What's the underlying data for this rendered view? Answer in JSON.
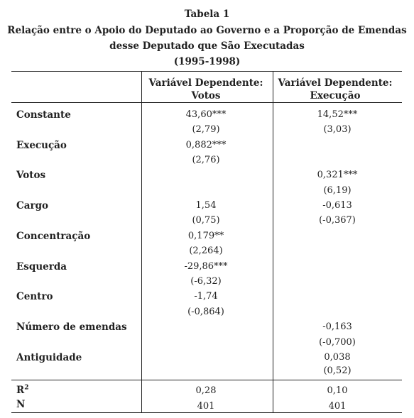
{
  "header": {
    "table_no": "Tabela 1",
    "title_line1": "Relação entre o Apoio do Deputado ao Governo e a Proporção de Emendas",
    "title_line2": "desse Deputado que São Executadas",
    "period": "(1995-1998)"
  },
  "columns": [
    {
      "line1": "Variável Dependente:",
      "line2": "Votos"
    },
    {
      "line1": "Variável Dependente:",
      "line2": "Execução"
    }
  ],
  "rows": [
    {
      "label": "Constante",
      "c1": "43,60***",
      "c1se": "(2,79)",
      "c2": "14,52***",
      "c2se": "(3,03)"
    },
    {
      "label": "Execução",
      "c1": "0,882***",
      "c1se": "(2,76)",
      "c2": "",
      "c2se": ""
    },
    {
      "label": "Votos",
      "c1": "",
      "c1se": "",
      "c2": "0,321***",
      "c2se": "(6,19)"
    },
    {
      "label": "Cargo",
      "c1": "1,54",
      "c1se": "(0,75)",
      "c2": "-0,613",
      "c2se": "(-0,367)"
    },
    {
      "label": "Concentração",
      "c1": "0,179**",
      "c1se": "(2,264)",
      "c2": "",
      "c2se": ""
    },
    {
      "label": "Esquerda",
      "c1": "-29,86***",
      "c1se": "(-6,32)",
      "c2": "",
      "c2se": ""
    },
    {
      "label": "Centro",
      "c1": "-1,74",
      "c1se": "(-0,864)",
      "c2": "",
      "c2se": ""
    },
    {
      "label": "Número de emendas",
      "c1": "",
      "c1se": "",
      "c2": "-0,163",
      "c2se": "(-0,700)"
    },
    {
      "label": "Antiguidade",
      "c1": "",
      "c1se": "",
      "c2": "0,038",
      "c2se": "(0,52)"
    }
  ],
  "footer": {
    "r2_label": "R",
    "r2_sup": "2",
    "n_label": "N",
    "r2_c1": "0,28",
    "r2_c2": "0,10",
    "n_c1": "401",
    "n_c2": "401"
  }
}
